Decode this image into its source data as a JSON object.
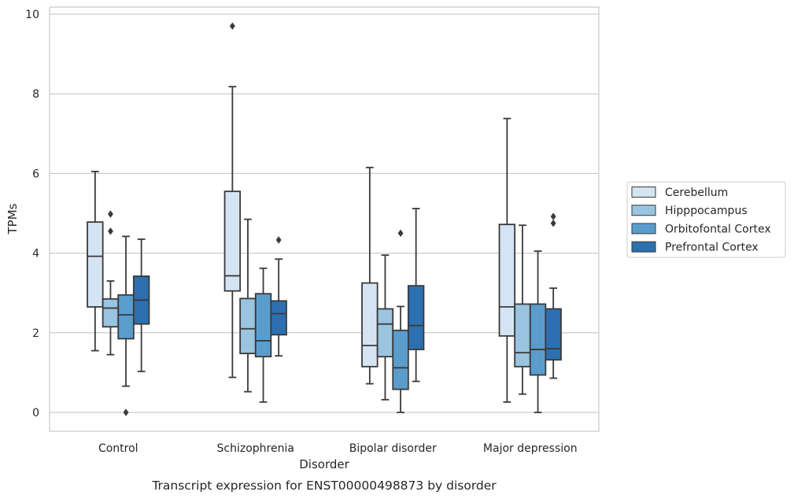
{
  "chart_data": {
    "type": "box",
    "xlabel": "Disorder",
    "ylabel": "TPMs",
    "caption": "Transcript expression for ENST00000498873 by disorder",
    "ylim": [
      -0.45,
      10.2
    ],
    "yticks": [
      "0",
      "2",
      "4",
      "6",
      "8",
      "10"
    ],
    "grid": "horizontal",
    "legend_position": "right",
    "categories": [
      "Control",
      "Schizophrenia",
      "Bipolar disorder",
      "Major depression"
    ],
    "series": [
      {
        "name": "Cerebellum",
        "color": "#d5e4f2",
        "boxes": [
          {
            "whislo": 1.55,
            "q1": 2.65,
            "med": 3.92,
            "q3": 4.78,
            "whishi": 6.05,
            "fliers": []
          },
          {
            "whislo": 0.88,
            "q1": 3.05,
            "med": 3.43,
            "q3": 5.55,
            "whishi": 8.18,
            "fliers": [
              9.7
            ]
          },
          {
            "whislo": 0.72,
            "q1": 1.15,
            "med": 1.68,
            "q3": 3.25,
            "whishi": 6.15,
            "fliers": []
          },
          {
            "whislo": 0.26,
            "q1": 1.92,
            "med": 2.65,
            "q3": 4.72,
            "whishi": 7.38,
            "fliers": []
          }
        ]
      },
      {
        "name": "Hipppocampus",
        "color": "#9ac4df",
        "boxes": [
          {
            "whislo": 1.45,
            "q1": 2.15,
            "med": 2.62,
            "q3": 2.85,
            "whishi": 3.3,
            "fliers": [
              4.98,
              4.55
            ]
          },
          {
            "whislo": 0.52,
            "q1": 1.48,
            "med": 2.1,
            "q3": 2.86,
            "whishi": 4.85,
            "fliers": []
          },
          {
            "whislo": 0.32,
            "q1": 1.4,
            "med": 2.22,
            "q3": 2.6,
            "whishi": 3.95,
            "fliers": []
          },
          {
            "whislo": 0.46,
            "q1": 1.15,
            "med": 1.5,
            "q3": 2.72,
            "whishi": 4.7,
            "fliers": []
          }
        ]
      },
      {
        "name": "Orbitofontal Cortex",
        "color": "#5a9dcc",
        "boxes": [
          {
            "whislo": 0.66,
            "q1": 1.85,
            "med": 2.45,
            "q3": 2.95,
            "whishi": 4.42,
            "fliers": [
              0.0
            ]
          },
          {
            "whislo": 0.26,
            "q1": 1.4,
            "med": 1.8,
            "q3": 2.98,
            "whishi": 3.62,
            "fliers": []
          },
          {
            "whislo": 0.0,
            "q1": 0.58,
            "med": 1.12,
            "q3": 2.06,
            "whishi": 2.66,
            "fliers": [
              4.5
            ]
          },
          {
            "whislo": 0.0,
            "q1": 0.94,
            "med": 1.58,
            "q3": 2.72,
            "whishi": 4.05,
            "fliers": []
          }
        ]
      },
      {
        "name": "Prefrontal Cortex",
        "color": "#2d70b0",
        "boxes": [
          {
            "whislo": 1.03,
            "q1": 2.22,
            "med": 2.82,
            "q3": 3.42,
            "whishi": 4.35,
            "fliers": []
          },
          {
            "whislo": 1.42,
            "q1": 1.95,
            "med": 2.48,
            "q3": 2.8,
            "whishi": 3.85,
            "fliers": [
              4.33
            ]
          },
          {
            "whislo": 0.78,
            "q1": 1.58,
            "med": 2.18,
            "q3": 3.18,
            "whishi": 5.12,
            "fliers": []
          },
          {
            "whislo": 0.86,
            "q1": 1.32,
            "med": 1.6,
            "q3": 2.6,
            "whishi": 3.12,
            "fliers": [
              4.92,
              4.75
            ]
          }
        ]
      }
    ]
  }
}
